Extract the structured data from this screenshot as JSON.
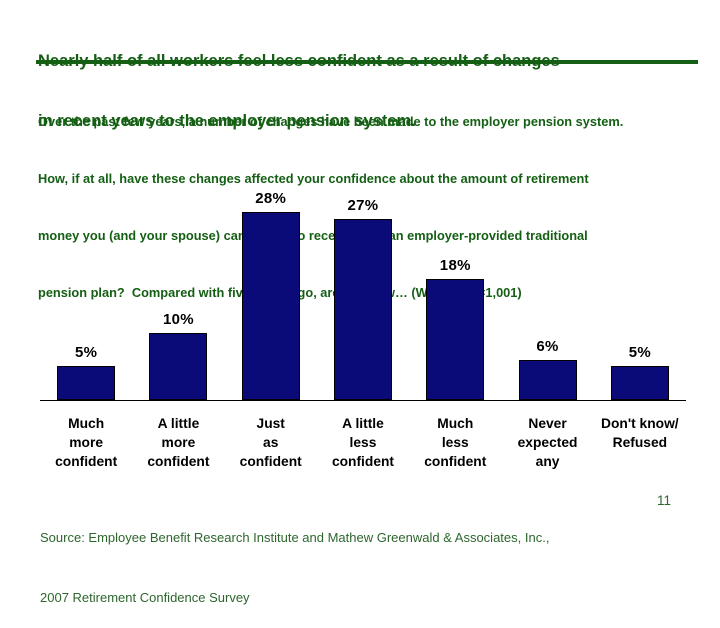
{
  "slide": {
    "title_lines": [
      "Nearly half of all workers feel less confident as a result of changes",
      "in recent years to the employer pension system."
    ],
    "question_lines": [
      "Over the past few years, a number of changes have been made to the employer pension system.",
      "How, if at all, have these changes affected your confidence about the amount of retirement",
      "money you (and your spouse) can expect to receive from an employer-provided traditional",
      "pension plan?  Compared with five years ago, are you now… (Workers n=1,001)"
    ],
    "source_lines": [
      "Source: Employee Benefit Research Institute and Mathew Greenwald & Associates, Inc.,",
      "2007 Retirement Confidence Survey"
    ],
    "page_number": "11"
  },
  "colors": {
    "heading_green": "#145f14",
    "footer_green": "#2d662d",
    "bar_navy": "#0a0a78",
    "bar_border": "#000000"
  },
  "chart_data": {
    "type": "bar",
    "title": "",
    "categories": [
      "Much\nmore\nconfident",
      "A little\nmore\nconfident",
      "Just\nas\nconfident",
      "A little\nless\nconfident",
      "Much\nless\nconfident",
      "Never\nexpected\nany",
      "Don't know/\nRefused"
    ],
    "values": [
      5,
      10,
      28,
      27,
      18,
      6,
      5
    ],
    "value_labels": [
      "5%",
      "10%",
      "28%",
      "27%",
      "18%",
      "6%",
      "5%"
    ],
    "xlabel": "",
    "ylabel": "",
    "ylim": [
      0,
      35
    ],
    "grid": false,
    "legend_position": "none",
    "bar_color": "#0a0a78"
  }
}
